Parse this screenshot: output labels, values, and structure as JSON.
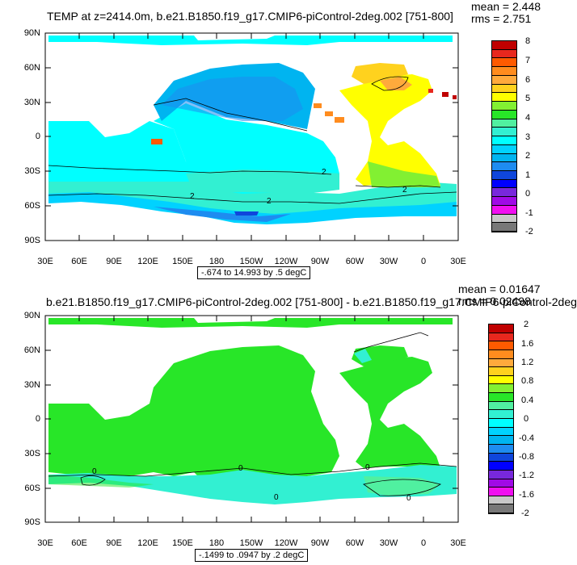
{
  "latitudes": [
    "90N",
    "60N",
    "30N",
    "0",
    "30S",
    "60S",
    "90S"
  ],
  "longitudes": [
    "30E",
    "60E",
    "90E",
    "120E",
    "150E",
    "180",
    "150W",
    "120W",
    "90W",
    "60W",
    "30W",
    "0",
    "30E"
  ],
  "colors": {
    "land": "#ffffff",
    "frame": "#000000",
    "contour": "#000000"
  },
  "panels": [
    {
      "title": "TEMP at z=2414.0m, b.e21.B1850.f19_g17.CMIP6-piControl-2deg.002 [751-800]",
      "mean": "mean = 2.448",
      "rms": "rms = 2.751",
      "range_label": "-.674 to 14.993 by .5 degC",
      "colorbar_labels": [
        "8",
        "7",
        "6",
        "5",
        "4",
        "3",
        "2",
        "1",
        "0",
        "-1",
        "-2"
      ],
      "colorbar_colors": [
        "#c00000",
        "#e8281e",
        "#ff5a00",
        "#ff8c1e",
        "#ffaa3c",
        "#ffd21e",
        "#ffff00",
        "#82f032",
        "#28e628",
        "#50f0a0",
        "#32f0d2",
        "#00ffff",
        "#00d2ff",
        "#00b4f0",
        "#1e8cf0",
        "#0f46dc",
        "#0000ff",
        "#7828dc",
        "#a00ae6",
        "#f00ff0",
        "#c8c8c8",
        "#787878"
      ],
      "contour_labels": [
        "2",
        "2",
        "2",
        "2"
      ]
    },
    {
      "title": "b.e21.B1850.f19_g17.CMIP6-piControl-2deg.002 [751-800] - b.e21.B1850.f19_g17.CMIP6-piControl-2deg",
      "mean": "mean = 0.01647",
      "rms": "rms = 0.02498",
      "range_label": "-.1499 to .0947 by .2 degC",
      "colorbar_labels": [
        "2",
        "1.6",
        "1.2",
        "0.8",
        "0.4",
        "0",
        "-0.4",
        "-0.8",
        "-1.2",
        "-1.6",
        "-2"
      ],
      "colorbar_colors": [
        "#c00000",
        "#e8281e",
        "#ff5a00",
        "#ff8c1e",
        "#ffaa3c",
        "#ffd21e",
        "#ffff00",
        "#82f032",
        "#28e628",
        "#50f0a0",
        "#32f0d2",
        "#00ffff",
        "#00d2ff",
        "#00b4f0",
        "#1e8cf0",
        "#0f46dc",
        "#0000ff",
        "#7828dc",
        "#a00ae6",
        "#f00ff0",
        "#c8c8c8",
        "#787878"
      ],
      "contour_labels": [
        "0",
        "0",
        "0",
        "0",
        "0"
      ]
    }
  ]
}
